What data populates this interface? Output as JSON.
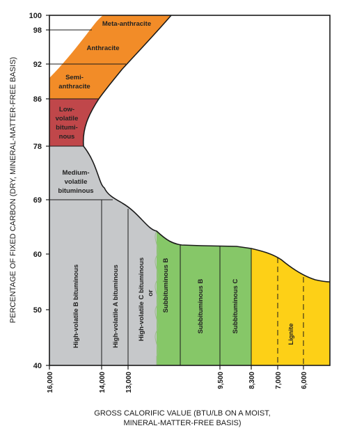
{
  "y_axis": {
    "title": "PERCENTAGE OF FIXED CARBON (DRY, MINERAL-MATTER-FREE BASIS)",
    "ticks": [
      "100",
      "98",
      "92",
      "86",
      "78",
      "69",
      "60",
      "50",
      "40"
    ]
  },
  "x_axis": {
    "title_line1": "GROSS CALORIFIC VALUE (BTU/LB ON A MOIST,",
    "title_line2": "MINERAL-MATTER-FREE BASIS)",
    "ticks": [
      "16,000",
      "14,000",
      "13,000",
      "9,500",
      "8,300",
      "7,000",
      "6,000"
    ]
  },
  "regions": {
    "meta_anthracite": "Meta-anthracite",
    "anthracite": "Anthracite",
    "semi_line1": "Semi-",
    "semi_line2": "anthracite",
    "lv_line1": "Low-",
    "lv_line2": "volatile",
    "lv_line3": "bitumi-",
    "lv_line4": "nous",
    "mv_line1": "Medium-",
    "mv_line2": "volatile",
    "mv_line3": "bituminous",
    "hvb": "High-volatile B bituminous",
    "hva": "High-volatile A bituminous",
    "hvc": "High-volatile C bituminous",
    "or": "or",
    "sub_a": "Subbituminous B",
    "sub_b": "Subbituminous B",
    "sub_c": "Subbituminous C",
    "lignite": "Lignite"
  },
  "colors": {
    "anthracite": "#f28c28",
    "low_volatile": "#c0474a",
    "bituminous": "#c6c8ca",
    "subbituminous": "#86c768",
    "lignite": "#fdd017"
  }
}
